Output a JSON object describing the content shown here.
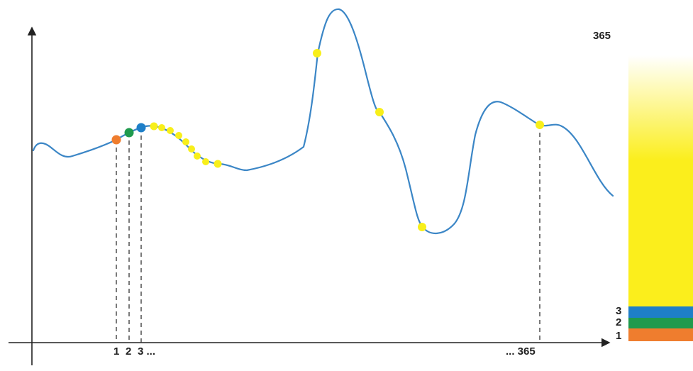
{
  "axis_labels": {
    "x_first": "1",
    "x_second": "2",
    "x_third": "3 ...",
    "x_last": "... 365"
  },
  "bar_labels": {
    "top": "365",
    "level_3": "3",
    "level_2": "2",
    "level_1": "1"
  },
  "colors": {
    "curve": "#3b86c6",
    "day_1": "#ef7d2e",
    "day_2": "#1f9a4d",
    "day_3": "#1e7fc8",
    "other_days": "#f8ef1a",
    "axis": "#222222",
    "bar_fill": "#fbee1c",
    "bar_fade": "#ffffff"
  }
}
